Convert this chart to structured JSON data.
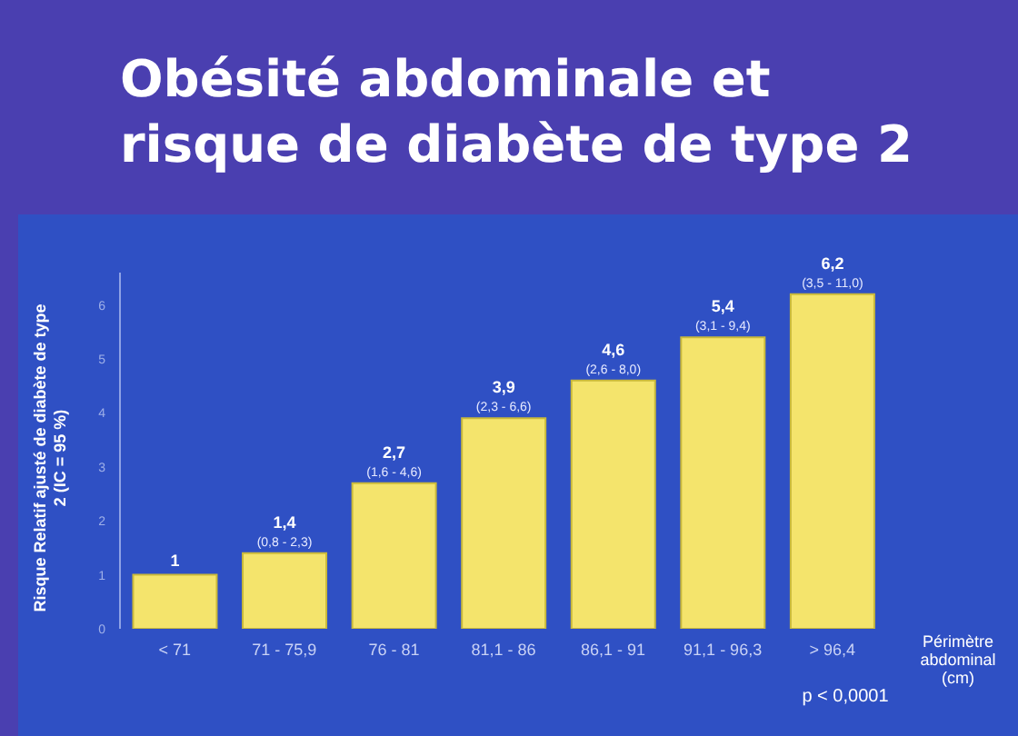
{
  "chart_data": {
    "type": "bar",
    "title": "Obésité abdominale et risque de diabète de type 2",
    "ylabel": "Risque Relatif ajusté de diabète de type 2 (IC = 95 %)",
    "xlabel": "Périmètre abdominal (cm)",
    "categories": [
      "< 71",
      "71 - 75,9",
      "76 - 81",
      "81,1 - 86",
      "86,1 - 91",
      "91,1 - 96,3",
      "> 96,4"
    ],
    "values": [
      1,
      1.4,
      2.7,
      3.9,
      4.6,
      5.4,
      6.2
    ],
    "value_labels": [
      "1",
      "1,4",
      "2,7",
      "3,9",
      "4,6",
      "5,4",
      "6,2"
    ],
    "color": "#f4e46c",
    "ylim": [
      0,
      6.6
    ],
    "yticks": [
      0,
      1,
      2,
      3,
      4,
      5,
      6
    ],
    "grid": false,
    "legend": false,
    "annotations": [
      {
        "text": "(0,8 - 2,3)",
        "x": "71 - 75,9",
        "y": 1.4
      },
      {
        "text": "(1,6 - 4,6)",
        "x": "76 - 81",
        "y": 2.7
      },
      {
        "text": "(2,3 - 6,6)",
        "x": "81,1 - 86",
        "y": 3.9
      },
      {
        "text": "(2,6 - 8,0)",
        "x": "86,1 - 91",
        "y": 4.6
      },
      {
        "text": "(3,1 - 9,4)",
        "x": "91,1 - 96,3",
        "y": 5.4
      },
      {
        "text": "(3,5 - 11,0)",
        "x": "> 96,4",
        "y": 6.2
      },
      "p < 0,0001"
    ]
  }
}
